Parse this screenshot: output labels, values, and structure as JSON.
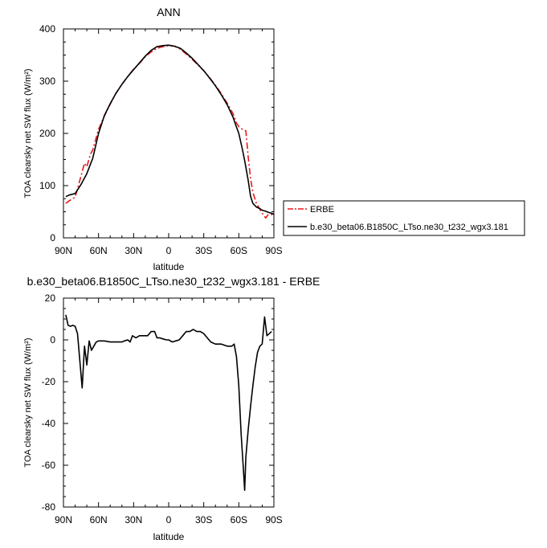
{
  "chart_data": [
    {
      "type": "line",
      "title": "ANN",
      "xlabel": "latitude",
      "ylabel": "TOA clearsky net SW flux (W/m²)",
      "xlim": [
        -90,
        90
      ],
      "ylim": [
        0,
        400
      ],
      "x_ticks": [
        {
          "value": -90,
          "label": "90N"
        },
        {
          "value": -60,
          "label": "60N"
        },
        {
          "value": -30,
          "label": "30N"
        },
        {
          "value": 0,
          "label": "0"
        },
        {
          "value": 30,
          "label": "30S"
        },
        {
          "value": 60,
          "label": "60S"
        },
        {
          "value": 90,
          "label": "90S"
        }
      ],
      "y_ticks": [
        0,
        100,
        200,
        300,
        400
      ],
      "legend": "right",
      "series": [
        {
          "name": "ERBE",
          "color": "#e8191c",
          "style": "dash-dot",
          "x": [
            -88,
            -85,
            -80,
            -75,
            -72,
            -70,
            -67,
            -65,
            -62,
            -60,
            -55,
            -50,
            -45,
            -40,
            -35,
            -30,
            -25,
            -20,
            -15,
            -10,
            -5,
            0,
            5,
            10,
            15,
            20,
            25,
            30,
            35,
            40,
            45,
            50,
            55,
            58,
            60,
            63,
            66,
            68,
            70,
            72,
            75,
            78,
            80,
            83,
            85,
            88,
            90
          ],
          "y": [
            66,
            71,
            78,
            118,
            143,
            136,
            160,
            168,
            192,
            208,
            233,
            256,
            277,
            294,
            309,
            323,
            334,
            347,
            356,
            363,
            366,
            368,
            367,
            361,
            352,
            342,
            331,
            320,
            307,
            292,
            276,
            258,
            238,
            220,
            213,
            208,
            205,
            155,
            114,
            87,
            66,
            55,
            47,
            38,
            44,
            45,
            41
          ]
        },
        {
          "name": "b.e30_beta06.B1850C_LTso.ne30_t232_wgx3.181",
          "color": "#000000",
          "style": "solid",
          "x": [
            -88,
            -85,
            -80,
            -75,
            -70,
            -65,
            -60,
            -55,
            -50,
            -45,
            -40,
            -35,
            -30,
            -25,
            -20,
            -15,
            -10,
            -5,
            0,
            5,
            10,
            15,
            20,
            25,
            30,
            35,
            40,
            45,
            50,
            55,
            58,
            60,
            63,
            65,
            68,
            70,
            72,
            75,
            78,
            80,
            83,
            85,
            88,
            90
          ],
          "y": [
            79,
            82,
            85,
            102,
            123,
            152,
            200,
            234,
            257,
            277,
            294,
            309,
            322,
            335,
            348,
            359,
            366,
            368,
            369,
            367,
            363,
            354,
            344,
            332,
            320,
            306,
            291,
            274,
            255,
            231,
            212,
            200,
            170,
            148,
            110,
            80,
            66,
            59,
            56,
            53,
            51,
            49,
            47,
            45
          ]
        }
      ]
    },
    {
      "type": "line",
      "title": "b.e30_beta06.B1850C_LTso.ne30_t232_wgx3.181 - ERBE",
      "xlabel": "latitude",
      "ylabel": "TOA clearsky net SW flux (W/m²)",
      "xlim": [
        -90,
        90
      ],
      "ylim": [
        -80,
        20
      ],
      "x_ticks": [
        {
          "value": -90,
          "label": "90N"
        },
        {
          "value": -60,
          "label": "60N"
        },
        {
          "value": -30,
          "label": "30N"
        },
        {
          "value": 0,
          "label": "0"
        },
        {
          "value": 30,
          "label": "30S"
        },
        {
          "value": 60,
          "label": "60S"
        },
        {
          "value": 90,
          "label": "90S"
        }
      ],
      "y_ticks": [
        -80,
        -60,
        -40,
        -20,
        0,
        20
      ],
      "series": [
        {
          "color": "#000000",
          "style": "solid",
          "x": [
            -88,
            -86,
            -84,
            -82,
            -80,
            -78,
            -76,
            -74,
            -72,
            -70,
            -68,
            -66,
            -64,
            -62,
            -60,
            -58,
            -55,
            -50,
            -45,
            -40,
            -38,
            -35,
            -33,
            -31,
            -28,
            -25,
            -22,
            -20,
            -18,
            -15,
            -12,
            -10,
            -8,
            -5,
            -2,
            0,
            3,
            6,
            9,
            12,
            15,
            18,
            21,
            24,
            27,
            30,
            33,
            36,
            40,
            45,
            50,
            54,
            56,
            58,
            60,
            62,
            64,
            65,
            66,
            68,
            70,
            72,
            74,
            76,
            78,
            80,
            82,
            84,
            86,
            88
          ],
          "y": [
            12,
            7,
            6.5,
            7,
            6.5,
            3,
            -10,
            -23,
            -3,
            -12,
            -0.5,
            -5,
            -3,
            -1,
            -0.5,
            -0.5,
            -0.5,
            -1,
            -1,
            -1,
            -0.5,
            0,
            -1,
            2,
            1,
            2,
            2,
            2,
            2,
            4,
            4,
            1,
            1,
            0.5,
            0,
            0,
            -1,
            -0.5,
            0,
            2,
            4,
            4,
            5,
            4,
            4,
            3,
            1,
            -1,
            -2,
            -2,
            -3,
            -3,
            -2,
            -8,
            -22,
            -45,
            -63,
            -72,
            -56,
            -43,
            -32,
            -22,
            -13,
            -6,
            -3,
            -2,
            11,
            2,
            3,
            4
          ]
        }
      ]
    }
  ]
}
